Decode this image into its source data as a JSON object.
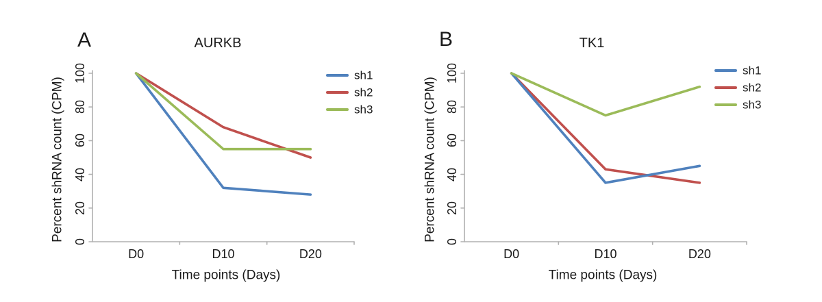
{
  "chart_data": [
    {
      "type": "line",
      "panel_label": "A",
      "title": "AURKB",
      "xlabel": "Time points (Days)",
      "ylabel": "Percent shRNA count (CPM)",
      "categories": [
        "D0",
        "D10",
        "D20"
      ],
      "series": [
        {
          "name": "sh1",
          "color": "#4f81bd",
          "values": [
            100,
            32,
            28
          ]
        },
        {
          "name": "sh2",
          "color": "#c0504d",
          "values": [
            100,
            68,
            50
          ]
        },
        {
          "name": "sh3",
          "color": "#9bbb59",
          "values": [
            100,
            55,
            55
          ]
        }
      ],
      "ylim": [
        0,
        100
      ],
      "yticks": [
        0,
        20,
        40,
        60,
        80,
        100
      ],
      "legend_position": "right",
      "grid": false,
      "axis_color": "#b0b0b0"
    },
    {
      "type": "line",
      "panel_label": "B",
      "title": "TK1",
      "xlabel": "Time points (Days)",
      "ylabel": "Percent shRNA count (CPM)",
      "categories": [
        "D0",
        "D10",
        "D20"
      ],
      "series": [
        {
          "name": "sh1",
          "color": "#4f81bd",
          "values": [
            100,
            35,
            45
          ]
        },
        {
          "name": "sh2",
          "color": "#c0504d",
          "values": [
            100,
            43,
            35
          ]
        },
        {
          "name": "sh3",
          "color": "#9bbb59",
          "values": [
            100,
            75,
            92
          ]
        }
      ],
      "ylim": [
        0,
        100
      ],
      "yticks": [
        0,
        20,
        40,
        60,
        80,
        100
      ],
      "legend_position": "right",
      "grid": false,
      "axis_color": "#b0b0b0"
    }
  ]
}
